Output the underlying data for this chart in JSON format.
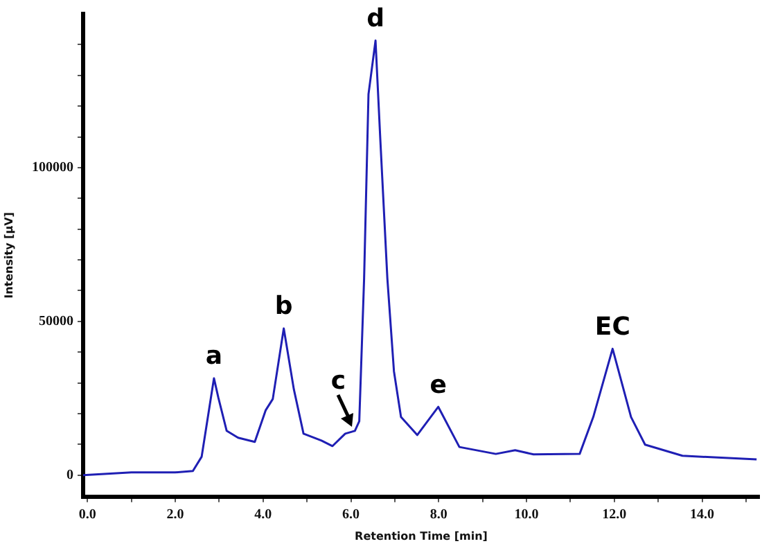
{
  "chart_data": {
    "type": "line",
    "xlabel": "Retention Time [min]",
    "ylabel": "Intensity [µV]",
    "xlim": [
      -0.1,
      15.3
    ],
    "ylim": [
      -7000,
      150000
    ],
    "xticks": [
      {
        "value": 0,
        "label": "0.0"
      },
      {
        "value": 1,
        "label": null
      },
      {
        "value": 2,
        "label": "2.0"
      },
      {
        "value": 3,
        "label": null
      },
      {
        "value": 4,
        "label": "4.0"
      },
      {
        "value": 5,
        "label": null
      },
      {
        "value": 6,
        "label": "6.0"
      },
      {
        "value": 7,
        "label": null
      },
      {
        "value": 8,
        "label": "8.0"
      },
      {
        "value": 9,
        "label": null
      },
      {
        "value": 10,
        "label": "10.0"
      },
      {
        "value": 11,
        "label": null
      },
      {
        "value": 12,
        "label": "12.0"
      },
      {
        "value": 13,
        "label": null
      },
      {
        "value": 14,
        "label": "14.0"
      },
      {
        "value": 15,
        "label": null
      }
    ],
    "yticks": [
      0,
      {
        "value": 10000,
        "label": null
      },
      {
        "value": 20000,
        "label": null
      },
      {
        "value": 30000,
        "label": null
      },
      {
        "value": 40000,
        "label": null
      },
      50000,
      {
        "value": 60000,
        "label": null
      },
      {
        "value": 70000,
        "label": null
      },
      {
        "value": 80000,
        "label": null
      },
      {
        "value": 90000,
        "label": null
      },
      100000,
      {
        "value": 110000,
        "label": null
      },
      {
        "value": 120000,
        "label": null
      },
      {
        "value": 130000,
        "label": null
      },
      {
        "value": 140000,
        "label": null
      }
    ],
    "grid": false,
    "legend": false,
    "marker": "none",
    "line_style": "solid",
    "series": [
      {
        "color": "#1f1fb4",
        "x": [
          -0.1,
          1.0,
          2.0,
          2.4,
          2.6,
          2.88,
          2.98,
          3.17,
          3.43,
          3.81,
          4.06,
          4.22,
          4.47,
          4.7,
          4.92,
          5.33,
          5.58,
          5.87,
          6.09,
          6.19,
          6.3,
          6.4,
          6.56,
          6.67,
          6.83,
          6.98,
          7.14,
          7.51,
          7.99,
          8.47,
          9.3,
          9.74,
          10.16,
          11.21,
          11.52,
          11.96,
          12.38,
          12.7,
          13.55,
          15.24
        ],
        "values": [
          0,
          900,
          900,
          1350,
          6000,
          31500,
          25200,
          14400,
          12150,
          10800,
          21150,
          24750,
          47700,
          27900,
          13500,
          11250,
          9450,
          13500,
          14400,
          17550,
          63900,
          123900,
          141300,
          108900,
          63900,
          33750,
          18900,
          13050,
          22200,
          9150,
          6900,
          8100,
          6750,
          6900,
          18900,
          41100,
          18900,
          9900,
          6300,
          5100
        ]
      }
    ],
    "annotations": [
      {
        "text": "a",
        "x": 2.88,
        "y": 31500
      },
      {
        "text": "b",
        "x": 4.47,
        "y": 47700
      },
      {
        "text": "c",
        "x": 6.09,
        "y": 14400
      },
      {
        "text": "d",
        "x": 6.56,
        "y": 141300
      },
      {
        "text": "e",
        "x": 7.99,
        "y": 22200
      },
      {
        "text": "EC",
        "x": 11.96,
        "y": 41100
      }
    ]
  }
}
